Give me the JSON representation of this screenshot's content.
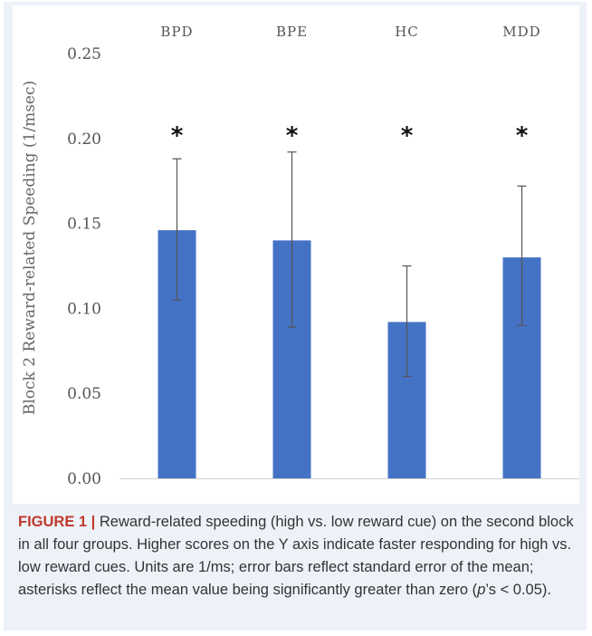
{
  "chart_data": {
    "type": "bar",
    "categories": [
      "BPD",
      "BPE",
      "HC",
      "MDD"
    ],
    "values": [
      0.146,
      0.14,
      0.092,
      0.13
    ],
    "error_bars": [
      {
        "low": 0.105,
        "high": 0.188
      },
      {
        "low": 0.089,
        "high": 0.192
      },
      {
        "low": 0.06,
        "high": 0.125
      },
      {
        "low": 0.09,
        "high": 0.172
      }
    ],
    "significance_markers": [
      "*",
      "*",
      "*",
      "*"
    ],
    "ylabel": "Block 2 Reward-related Speeding (1/msec)",
    "yticks": [
      "0.00",
      "0.05",
      "0.10",
      "0.15",
      "0.20",
      "0.25"
    ],
    "ylim": [
      0,
      0.25
    ],
    "category_labels_position": "top",
    "bar_color": "#4472c4",
    "grid": false
  },
  "caption": {
    "label": "FIGURE 1 |",
    "text_before_p": " Reward-related speeding (high vs. low reward cue) on the second block in all four groups. Higher scores on the Y axis indicate faster responding for high vs. low reward cues. Units are 1/ms; error bars reflect standard error of the mean; asterisks reflect the mean value being significantly greater than zero (",
    "p": "p",
    "text_after_p": "’s < 0.05)."
  }
}
